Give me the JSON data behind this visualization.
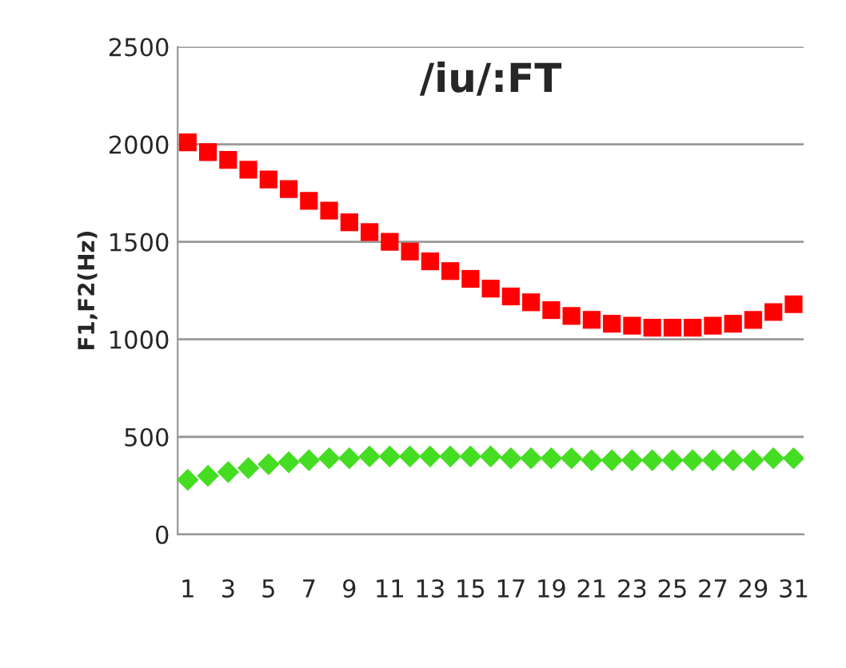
{
  "chart_data": {
    "type": "scatter",
    "title": "/iu/:FT",
    "ylabel": "F1,F2(Hz)",
    "categories": [
      "1",
      null,
      "3",
      null,
      "5",
      null,
      "7",
      null,
      "9",
      null,
      "11",
      null,
      "13",
      null,
      "15",
      null,
      "17",
      null,
      "19",
      null,
      "21",
      null,
      "23",
      null,
      "25",
      null,
      "27",
      null,
      "29",
      null,
      "31"
    ],
    "series": [
      {
        "color": "#ff0000",
        "marker": "square",
        "values": [
          2010,
          1960,
          1920,
          1870,
          1820,
          1770,
          1710,
          1660,
          1600,
          1550,
          1500,
          1450,
          1400,
          1350,
          1310,
          1260,
          1220,
          1190,
          1150,
          1120,
          1100,
          1080,
          1070,
          1060,
          1060,
          1060,
          1070,
          1080,
          1100,
          1140,
          1180
        ]
      },
      {
        "color": "#44dd22",
        "marker": "diamond",
        "values": [
          280,
          300,
          320,
          340,
          360,
          370,
          380,
          390,
          390,
          400,
          400,
          400,
          400,
          400,
          400,
          400,
          390,
          390,
          390,
          390,
          380,
          380,
          380,
          380,
          380,
          380,
          380,
          380,
          380,
          390,
          390
        ]
      }
    ],
    "ylim": [
      0,
      2500
    ],
    "yticks": [
      0,
      500,
      1000,
      1500,
      2000,
      2500
    ],
    "grid": "y"
  }
}
